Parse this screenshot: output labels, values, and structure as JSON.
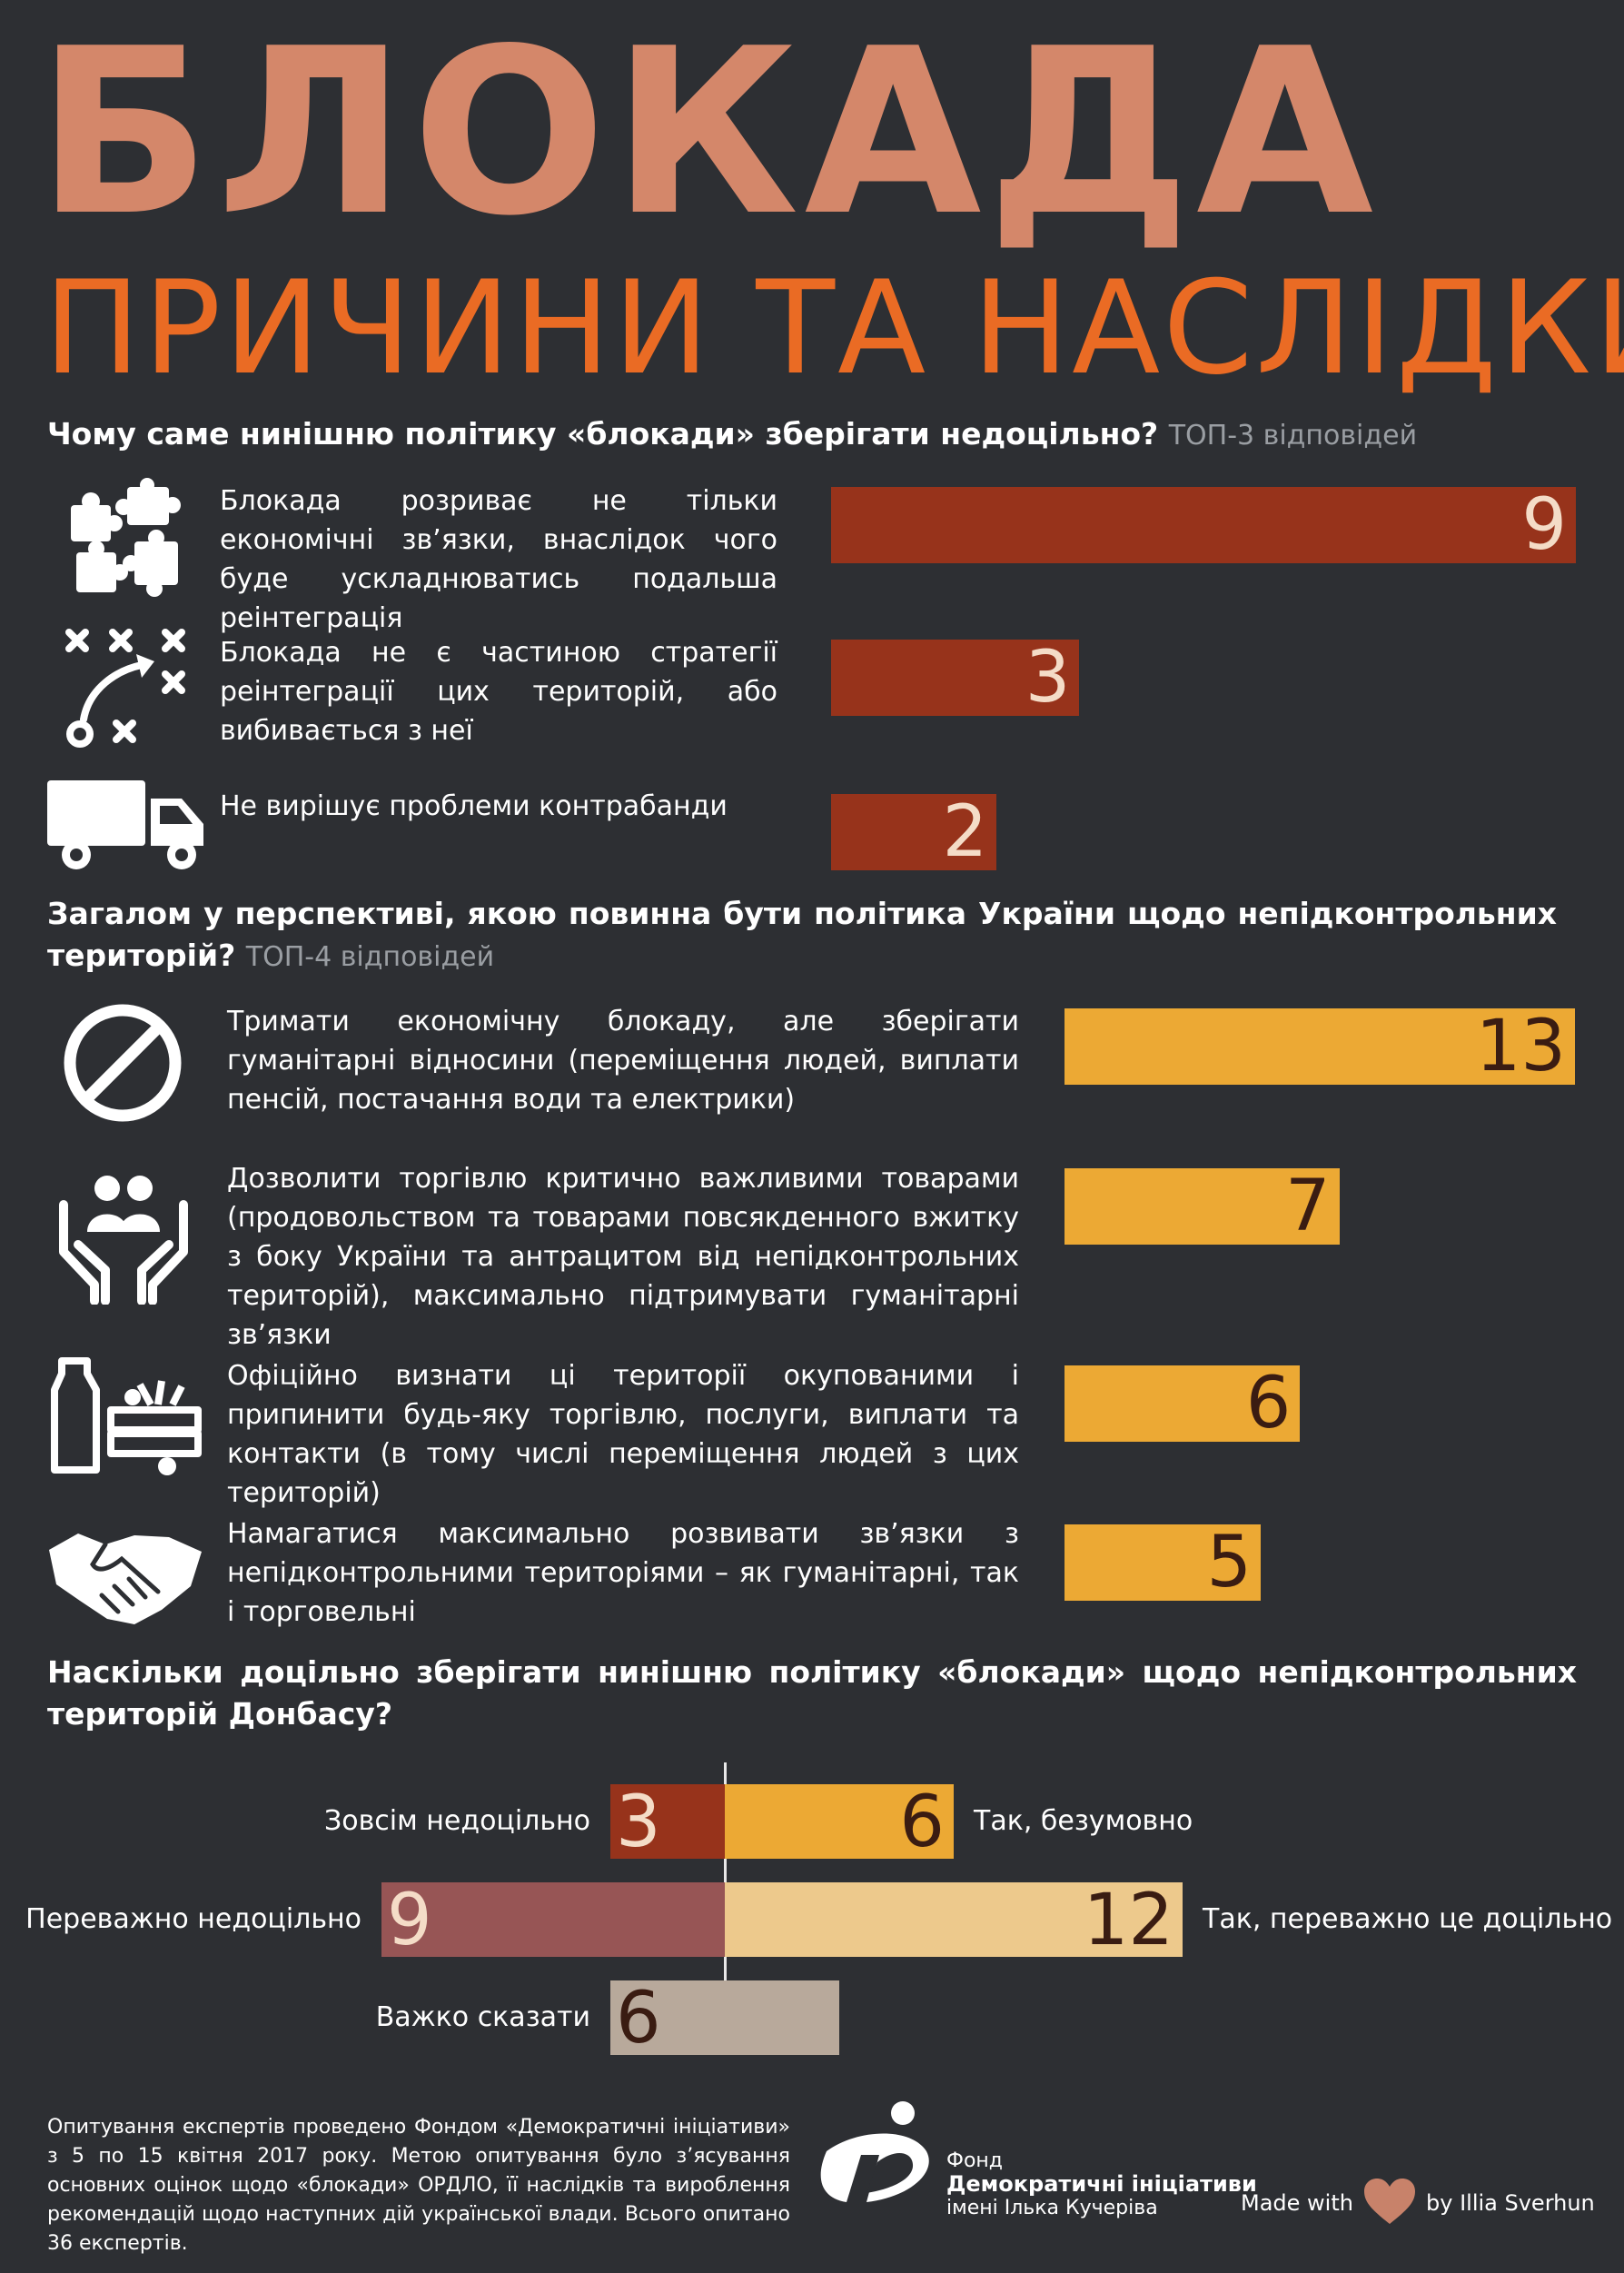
{
  "title": "БЛОКАДА",
  "subtitle": "ПРИЧИНИ ТА НАСЛІДКИ",
  "colors": {
    "title": "#d4876a",
    "subtitle": "#ea6b24",
    "dark_bar": "#97331b",
    "yellow_bar": "#eca934",
    "mauve": "#975555",
    "light_yellow": "#edc98c",
    "beige": "#b8a99b",
    "background": "#2d2f33"
  },
  "q1": {
    "question": "Чому саме нинішню політику «блокади» зберігати недоцільно?",
    "note": "ТОП-3 відповідей"
  },
  "q2": {
    "question": "Загалом у перспективі, якою повинна бути політика України щодо непідконтрольних територій?",
    "note": "ТОП-4 відповідей"
  },
  "q3": {
    "question": "Наскільки доцільно зберігати нинішню політику «блокади» щодо непідконтрольних територій Донбасу?"
  },
  "chart_data": [
    {
      "type": "bar",
      "orientation": "horizontal",
      "categories": [
        "Блокада розриває не тільки економічні зв’язки, внаслідок чого буде ускладнюватись подальша реінтеграція",
        "Блокада не є частиною стратегії реінтеграції цих територій, або вибивається з неї",
        "Не вирішує проблеми контрабанди"
      ],
      "icons": [
        "puzzle-icon",
        "strategy-icon",
        "truck-icon"
      ],
      "values": [
        9,
        3,
        2
      ],
      "xlim": [
        0,
        9
      ]
    },
    {
      "type": "bar",
      "orientation": "horizontal",
      "categories": [
        "Тримати економічну блокаду, але зберігати гуманітарні відносини (переміщення людей, виплати пенсій, постачання води та електрики)",
        "Дозволити торгівлю критично важливими товарами (продовольством та товарами повсякденного вжитку з боку України та антрацитом  від непідконтрольних територій), максимально підтримувати гуманітарні зв’язки",
        "Офіційно визнати ці території окупованими і припинити будь-яку торгівлю, послуги, виплати  та контакти (в тому числі переміщення людей з цих територій)",
        "Намагатися максимально розвивати зв’язки з непідконтрольними територіями  – як гуманітарні, так і торговельні"
      ],
      "icons": [
        "ban-icon",
        "care-hands-icon",
        "groceries-icon",
        "handshake-icon"
      ],
      "values": [
        13,
        7,
        6,
        5
      ],
      "xlim": [
        0,
        13
      ]
    },
    {
      "type": "bar",
      "orientation": "diverging",
      "rows": [
        {
          "negative": {
            "label": "Зовсім недоцільно",
            "value": 3
          },
          "positive": {
            "label": "Так, безумовно",
            "value": 6
          }
        },
        {
          "negative": {
            "label": "Переважно недоцільно",
            "value": 9
          },
          "positive": {
            "label": "Так, переважно це доцільно",
            "value": 12
          }
        },
        {
          "neutral": {
            "label": "Важко сказати",
            "value": 6
          }
        }
      ]
    }
  ],
  "footer": {
    "text": "Опитування експертів проведено Фондом «Демократичні ініціативи» з 5 по 15 квітня 2017 року. Метою опитування було з’ясування основних оцінок щодо «блокади» ОРДЛО, її наслідків та вироблення рекомендацій щодо наступних дій української влади. Всього опитано 36 експертів.",
    "logo_line1": "Фонд",
    "logo_line2": "Демократичні ініціативи",
    "logo_line3": "імені Ілька Кучеріва",
    "made_with": "Made with",
    "by": "by Illia Sverhun"
  }
}
